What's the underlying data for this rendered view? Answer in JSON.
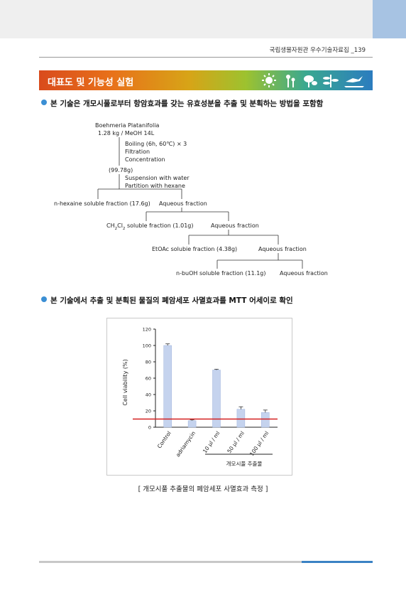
{
  "header": {
    "publisher_text": "국립생물자원관 우수기술자료집 _139"
  },
  "banner": {
    "title": "대표도 및 기능성 실험"
  },
  "section1": {
    "text": "본 기술은 개모시풀로부터 항암효과를 갖는 유효성분을 추출 및 분획하는 방법을 포함함"
  },
  "flowchart": {
    "source": "Boehmeria Platanifolia",
    "amount": "1.28 kg / MeOH 14L",
    "steps": [
      "Boiling (6h, 60℃) × 3",
      "Filtration",
      "Concentration"
    ],
    "extract_yield": "(99.78g)",
    "steps2": [
      "Suspension with water",
      "Partition with hexane"
    ],
    "hexane_fraction": "n-hexaine soluble fraction (17.6g)",
    "aqueous1": "Aqueous fraction",
    "ch2cl2_prefix": "CH",
    "ch2cl2_sub1": "2",
    "ch2cl2_mid": "Cl",
    "ch2cl2_sub2": "2",
    "ch2cl2_suffix": " soluble fraction (1.01g)",
    "aqueous2": "Aqueous fraction",
    "etoac_fraction": "EtOAc solubie fraction (4.38g)",
    "aqueous3": "Aqueous fraction",
    "buoh_fraction": "n-buOH soluble fraction (11.1g)",
    "aqueous4": "Aqueous fraction"
  },
  "section2": {
    "text": "본 기술에서 추출 및 분획된 물질의 폐암세포 사멸효과를 MTT 어세이로 확인"
  },
  "chart_data": {
    "type": "bar",
    "categories": [
      "Control",
      "adriamycin",
      "10 μl / ml",
      "50 μl / ml",
      "100 μl / ml"
    ],
    "values": [
      100,
      8,
      70,
      22,
      18
    ],
    "errors": [
      2,
      1,
      1,
      3,
      3
    ],
    "ylabel": "Cell viability (%)",
    "ylim": [
      0,
      120
    ],
    "yticks": [
      0,
      20,
      40,
      60,
      80,
      100,
      120
    ],
    "group_label": "개모시풀 추출물",
    "threshold_line": 10,
    "colors": {
      "bar": "#c5d3ee",
      "bar_edge": "#9fb3dc",
      "threshold": "#d42020"
    },
    "grid": false
  },
  "caption": "[ 개모시풀 추출물의 폐암세포 사멸효과 측정 ]"
}
